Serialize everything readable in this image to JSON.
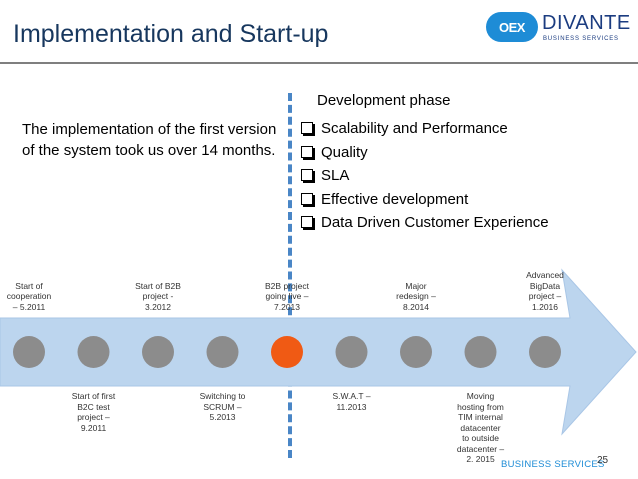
{
  "slide": {
    "title": "Implementation and Start-up",
    "intro_text": "The implementation of the first version of the system took us over 14 months.",
    "page_number": "25"
  },
  "logo": {
    "mark": "OEX",
    "word": "DIVANTE",
    "subtitle": "BUSINESS SERVICES"
  },
  "footer": {
    "brand_text": "BUSINESS SERVICES"
  },
  "development": {
    "title": "Development phase",
    "items": [
      "Scalability and Performance",
      "Quality",
      "SLA",
      "Effective development",
      "Data Driven Customer Experience"
    ]
  },
  "timeline": {
    "milestones": [
      {
        "label": "Start of\ncooperation\n– 5.2011",
        "position": "above",
        "highlight": false
      },
      {
        "label": "Start of first\nB2C test\nproject –\n9.2011",
        "position": "below",
        "highlight": false
      },
      {
        "label": "Start of B2B\nproject -\n3.2012",
        "position": "above",
        "highlight": false
      },
      {
        "label": "Switching to\nSCRUM –\n5.2013",
        "position": "below",
        "highlight": false
      },
      {
        "label": "B2B project\ngoing live –\n7.2013",
        "position": "above",
        "highlight": true
      },
      {
        "label": "S.W.A.T –\n11.2013",
        "position": "below",
        "highlight": false
      },
      {
        "label": "Major\nredesign –\n8.2014",
        "position": "above",
        "highlight": false
      },
      {
        "label": "Moving\nhosting from\nTIM internal\ndatacenter\nto outside\ndatacenter –\n2. 2015",
        "position": "below",
        "highlight": false
      },
      {
        "label": "Advanced\nBigData\nproject –\n1.2016",
        "position": "above",
        "highlight": false
      }
    ]
  },
  "colors": {
    "title": "#17375e",
    "arrow": "#bcd5ee",
    "dot": "#8c8c8c",
    "highlight": "#f05a14",
    "accent": "#1e8cd6"
  }
}
